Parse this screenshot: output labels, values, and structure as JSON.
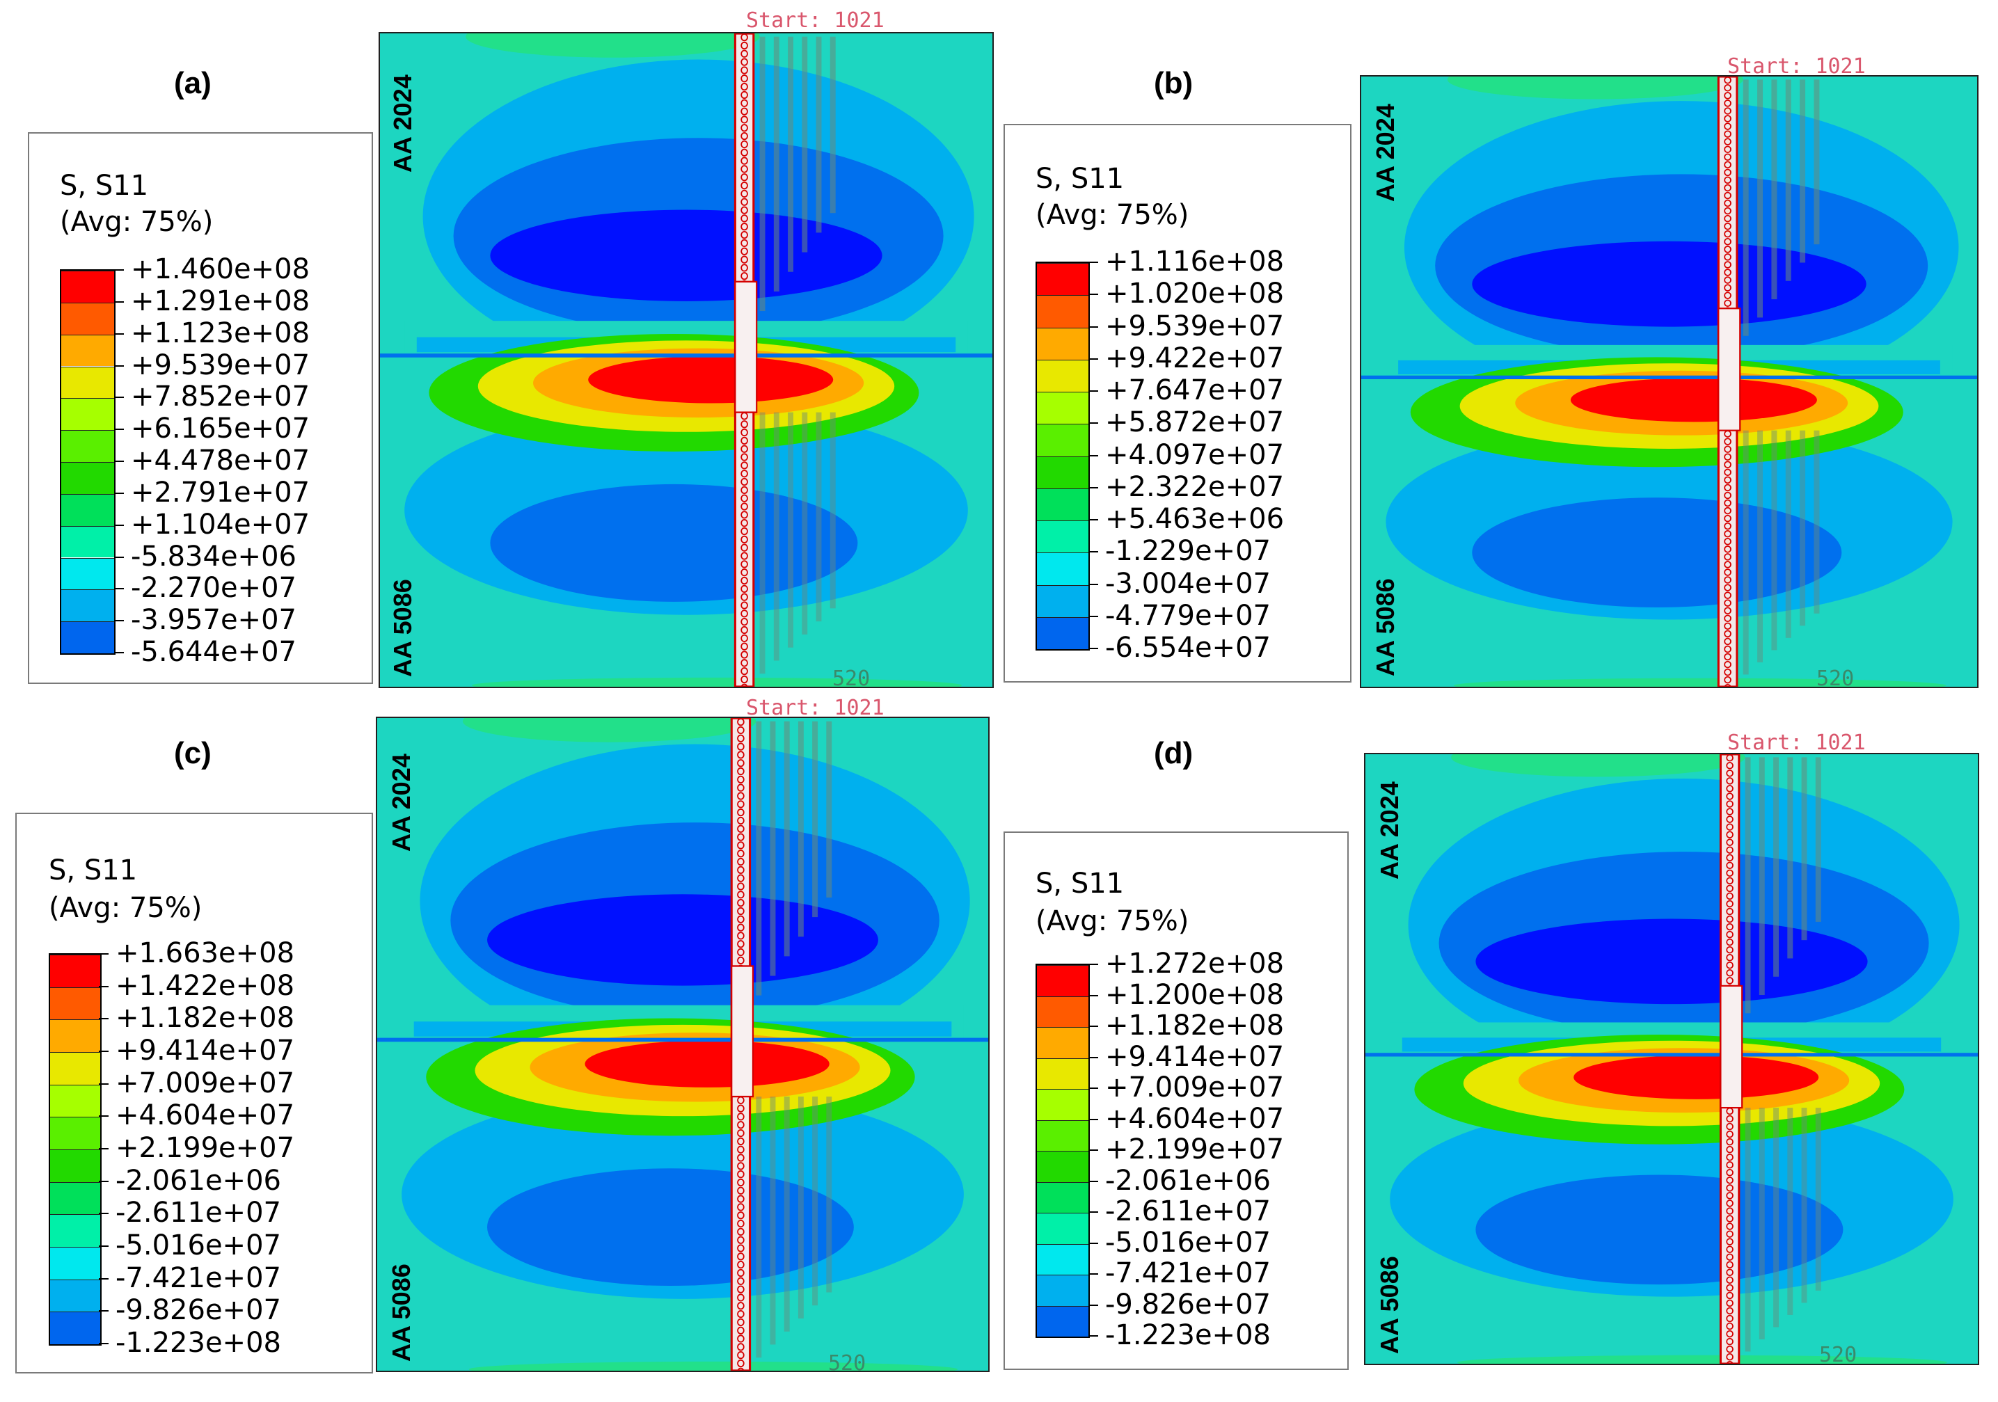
{
  "figure": {
    "start_text": "Start: 1021",
    "end_text": "520",
    "node_marker": "3"
  },
  "panels": [
    {
      "label": "(a)",
      "legend": {
        "title1": "S, S11",
        "title2": "(Avg: 75%)",
        "values": [
          "+1.460e+08",
          "+1.291e+08",
          "+1.123e+08",
          "+9.539e+07",
          "+7.852e+07",
          "+6.165e+07",
          "+4.478e+07",
          "+2.791e+07",
          "+1.104e+07",
          "-5.834e+06",
          "-2.270e+07",
          "-3.957e+07",
          "-5.644e+07"
        ]
      },
      "top_material": "AA 2024",
      "bottom_material": "AA 5086"
    },
    {
      "label": "(b)",
      "legend": {
        "title1": "S, S11",
        "title2": "(Avg: 75%)",
        "values": [
          "+1.116e+08",
          "+1.020e+08",
          "+9.539e+07",
          "+9.422e+07",
          "+7.647e+07",
          "+5.872e+07",
          "+4.097e+07",
          "+2.322e+07",
          "+5.463e+06",
          "-1.229e+07",
          "-3.004e+07",
          "-4.779e+07",
          "-6.554e+07"
        ]
      },
      "top_material": "AA 2024",
      "bottom_material": "AA 5086"
    },
    {
      "label": "(c)",
      "legend": {
        "title1": "S, S11",
        "title2": "(Avg: 75%)",
        "values": [
          "+1.663e+08",
          "+1.422e+08",
          "+1.182e+08",
          "+9.414e+07",
          "+7.009e+07",
          "+4.604e+07",
          "+2.199e+07",
          "-2.061e+06",
          "-2.611e+07",
          "-5.016e+07",
          "-7.421e+07",
          "-9.826e+07",
          "-1.223e+08"
        ]
      },
      "top_material": "AA 2024",
      "bottom_material": "AA 5086"
    },
    {
      "label": "(d)",
      "legend": {
        "title1": "S, S11",
        "title2": "(Avg: 75%)",
        "values": [
          "+1.272e+08",
          "+1.200e+08",
          "+1.182e+08",
          "+9.414e+07",
          "+7.009e+07",
          "+4.604e+07",
          "+2.199e+07",
          "-2.061e+06",
          "-2.611e+07",
          "-5.016e+07",
          "-7.421e+07",
          "-9.826e+07",
          "-1.223e+08"
        ]
      },
      "top_material": "AA 2024",
      "bottom_material": "AA 5086"
    }
  ],
  "colormap": [
    "#ff0000",
    "#ff5a00",
    "#ffaa00",
    "#e8e800",
    "#a6ff00",
    "#5aef00",
    "#22d900",
    "#00e05a",
    "#00f0a8",
    "#00e8ee",
    "#00b0ee",
    "#0066ee",
    "#0000ff"
  ]
}
